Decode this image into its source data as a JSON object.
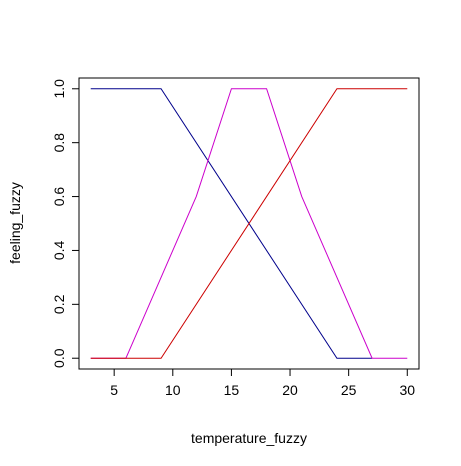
{
  "chart_data": {
    "type": "line",
    "title": "",
    "xlabel": "temperature_fuzzy",
    "ylabel": "feeling_fuzzy",
    "xlim": [
      2,
      31
    ],
    "ylim": [
      -0.04,
      1.04
    ],
    "xticks": [
      5,
      10,
      15,
      20,
      25,
      30
    ],
    "yticks": [
      0.0,
      0.2,
      0.4,
      0.6,
      0.8,
      1.0
    ],
    "xtick_labels": [
      "5",
      "10",
      "15",
      "20",
      "25",
      "30"
    ],
    "ytick_labels": [
      "0.0",
      "0.2",
      "0.4",
      "0.6",
      "0.8",
      "1.0"
    ],
    "grid": false,
    "series": [
      {
        "color": "#00008b",
        "x": [
          3,
          9,
          24,
          27
        ],
        "y": [
          1.0,
          1.0,
          0.0,
          0.0
        ]
      },
      {
        "color": "#cc00cc",
        "x": [
          3,
          6,
          12,
          15,
          18,
          21,
          27,
          30
        ],
        "y": [
          0.0,
          0.0,
          0.6,
          1.0,
          1.0,
          0.6,
          0.0,
          0.0
        ]
      },
      {
        "color": "#cc0000",
        "x": [
          3,
          9,
          24,
          30
        ],
        "y": [
          0.0,
          0.0,
          1.0,
          1.0
        ]
      }
    ]
  }
}
